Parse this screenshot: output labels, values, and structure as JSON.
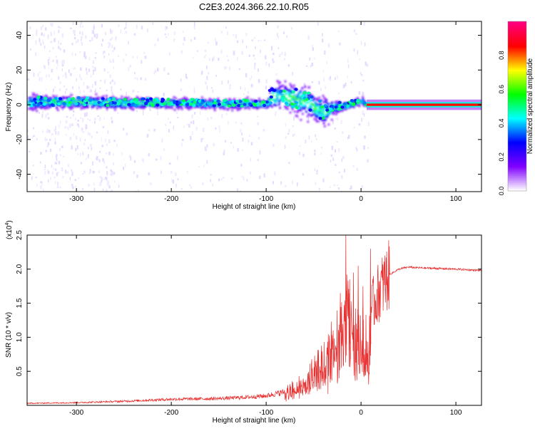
{
  "title": "C2E3.2024.366.22.10.R05",
  "colorbar": {
    "label": "Normalized spectral amplitude",
    "ticks": [
      "0.0",
      "0.2",
      "0.4",
      "0.6",
      "0.8"
    ],
    "tick_values": [
      0.0,
      0.2,
      0.4,
      0.6,
      0.8
    ],
    "range": [
      0,
      1
    ],
    "colormap": [
      "#ffffff",
      "#8000ff",
      "#0000ff",
      "#00ffff",
      "#00ff00",
      "#ffff00",
      "#ff0000",
      "#ff0080"
    ]
  },
  "chart_data": [
    {
      "type": "heatmap",
      "xlabel": "Height of straight line (km)",
      "ylabel": "Frequency (Hz)",
      "xlim": [
        -352,
        127
      ],
      "ylim": [
        -50,
        48
      ],
      "xticks": [
        -300,
        -200,
        -100,
        0,
        100
      ],
      "yticks": [
        -40,
        -20,
        0,
        20,
        40
      ],
      "ridge": {
        "x": [
          -352,
          -300,
          -250,
          -200,
          -150,
          -100,
          -95,
          -80,
          -60,
          -45,
          -40,
          -30,
          -15,
          -5,
          0,
          5,
          127
        ],
        "center_hz": [
          2,
          2,
          1.5,
          1.5,
          1,
          1,
          5,
          5,
          3,
          -3,
          -3,
          -1,
          0,
          2,
          3,
          0,
          0
        ],
        "spread_hz": [
          6,
          5,
          5,
          4,
          4,
          4,
          12,
          12,
          14,
          10,
          14,
          6,
          3,
          3,
          4,
          1,
          1
        ]
      }
    },
    {
      "type": "line",
      "xlabel": "Height of straight line (km)",
      "ylabel": "SNR (10 * v/v)",
      "y_multiplier": "(x10^4)",
      "xlim": [
        -352,
        127
      ],
      "ylim": [
        0,
        2.5
      ],
      "xticks": [
        -300,
        -200,
        -100,
        0,
        100
      ],
      "yticks": [
        "0.5",
        "1.0",
        "1.5",
        "2.0",
        "2.5"
      ],
      "ytick_values": [
        0.5,
        1.0,
        1.5,
        2.0,
        2.5
      ],
      "color": "#e83030",
      "series": [
        {
          "name": "",
          "x": [
            -352,
            -300,
            -250,
            -200,
            -150,
            -120,
            -100,
            -80,
            -60,
            -50,
            -40,
            -30,
            -20,
            -15,
            -10,
            -5,
            0,
            5,
            8,
            10,
            15,
            20,
            30,
            40,
            50,
            60,
            80,
            100,
            127
          ],
          "y": [
            0.03,
            0.04,
            0.06,
            0.09,
            0.1,
            0.12,
            0.14,
            0.2,
            0.35,
            0.5,
            0.65,
            0.9,
            1.3,
            1.6,
            1.2,
            1.1,
            1.15,
            1.1,
            0.75,
            1.4,
            1.55,
            1.7,
            1.92,
            2.0,
            2.03,
            2.02,
            2.01,
            2.0,
            1.98
          ]
        }
      ],
      "spikes": [
        {
          "x": -16,
          "y": 2.5
        },
        {
          "x": -12,
          "y": 1.85
        },
        {
          "x": -8,
          "y": 1.95
        },
        {
          "x": -3,
          "y": 2.05
        },
        {
          "x": 2,
          "y": 1.75
        },
        {
          "x": 10,
          "y": 2.3
        },
        {
          "x": 9,
          "y": 0.58
        }
      ]
    }
  ]
}
